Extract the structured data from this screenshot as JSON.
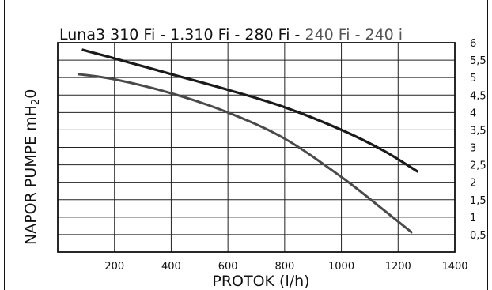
{
  "chart_data": {
    "type": "line",
    "title_part1": "Luna3 310 Fi - 1.310 Fi - 280 Fi - ",
    "title_part2": "240 Fi - 240 i",
    "xlabel": "PROTOK (l/h)",
    "ylabel": "NAPOR PUMPE  mH",
    "ylabel_sub": "2",
    "ylabel_tail": "0",
    "xlim": [
      0,
      1400
    ],
    "ylim": [
      0,
      6
    ],
    "x_ticks": [
      "200",
      "400",
      "600",
      "800",
      "1000",
      "1200",
      "1400"
    ],
    "y_ticks": [
      "0,5",
      "1",
      "1,5",
      "2",
      "2,5",
      "3",
      "3,5",
      "4",
      "4,5",
      "5",
      "5,5",
      "6"
    ],
    "grid": true,
    "series": [
      {
        "color": "#1a1a1a",
        "x": [
          85,
          200,
          400,
          600,
          800,
          1000,
          1150,
          1270
        ],
        "y": [
          5.8,
          5.55,
          5.1,
          4.65,
          4.15,
          3.5,
          2.9,
          2.3
        ]
      },
      {
        "color": "#4a4a4a",
        "x": [
          70,
          200,
          400,
          600,
          800,
          1000,
          1150,
          1250
        ],
        "y": [
          5.1,
          4.95,
          4.55,
          4.0,
          3.25,
          2.15,
          1.2,
          0.55
        ]
      }
    ]
  }
}
